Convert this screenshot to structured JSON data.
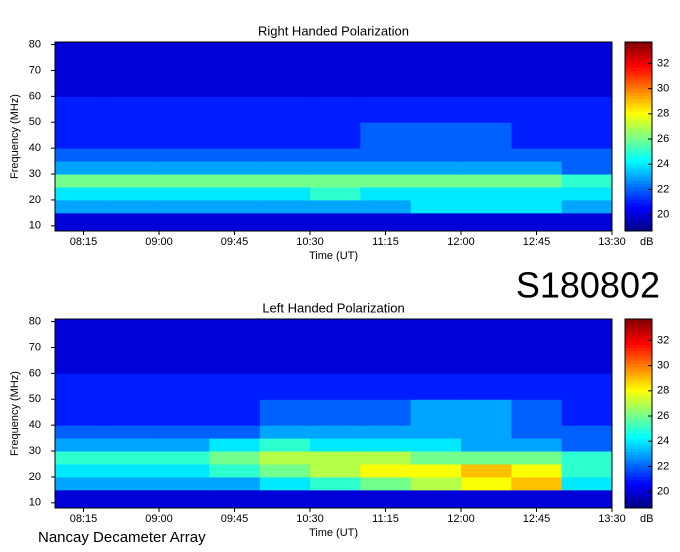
{
  "label": "S180802",
  "footer": "Nancay Decameter Array",
  "chart_data": [
    {
      "type": "heatmap",
      "title": "Right Handed Polarization",
      "xlabel": "Time (UT)",
      "ylabel": "Frequency (MHz)",
      "colorbar_label": "dB",
      "colormap": "jet",
      "xlim": [
        478,
        810
      ],
      "ylim": [
        8,
        81
      ],
      "clim": [
        18.7,
        33.7
      ],
      "xticks": [
        {
          "value": 495,
          "label": "08:15"
        },
        {
          "value": 540,
          "label": "09:00"
        },
        {
          "value": 585,
          "label": "09:45"
        },
        {
          "value": 630,
          "label": "10:30"
        },
        {
          "value": 675,
          "label": "11:15"
        },
        {
          "value": 720,
          "label": "12:00"
        },
        {
          "value": 765,
          "label": "12:45"
        },
        {
          "value": 810,
          "label": "13:30"
        }
      ],
      "yticks": [
        10,
        20,
        30,
        40,
        50,
        60,
        70,
        80
      ],
      "cticks": [
        20,
        22,
        24,
        26,
        28,
        30,
        32
      ],
      "xbins": [
        478,
        510,
        540,
        570,
        600,
        630,
        660,
        690,
        720,
        750,
        780,
        810
      ],
      "ybins": [
        8,
        15,
        20,
        25,
        30,
        35,
        40,
        50,
        60,
        70,
        81
      ],
      "values": [
        [
          20,
          20,
          20,
          20,
          20,
          20,
          20,
          20,
          20,
          20,
          20
        ],
        [
          23,
          23,
          23,
          23,
          23,
          23,
          23,
          24,
          24,
          24,
          23
        ],
        [
          24,
          24,
          24,
          24,
          24,
          25,
          24,
          24,
          24,
          24,
          24
        ],
        [
          26,
          26,
          26,
          26,
          26,
          26,
          26,
          26,
          26,
          26,
          25
        ],
        [
          23,
          23,
          23,
          23,
          23,
          23,
          23,
          23,
          23,
          23,
          22
        ],
        [
          22,
          22,
          22,
          22,
          22,
          22,
          22,
          22,
          22,
          22,
          22
        ],
        [
          21,
          21,
          21,
          21,
          21,
          21,
          22,
          22,
          22,
          21,
          21
        ],
        [
          21,
          21,
          21,
          21,
          21,
          21,
          21,
          21,
          21,
          21,
          21
        ],
        [
          20,
          20,
          20,
          20,
          20,
          20,
          20,
          20,
          20,
          20,
          20
        ],
        [
          20,
          20,
          20,
          20,
          20,
          20,
          20,
          20,
          20,
          20,
          20
        ]
      ]
    },
    {
      "type": "heatmap",
      "title": "Left Handed Polarization",
      "xlabel": "Time (UT)",
      "ylabel": "Frequency (MHz)",
      "colorbar_label": "dB",
      "colormap": "jet",
      "xlim": [
        478,
        810
      ],
      "ylim": [
        8,
        81
      ],
      "clim": [
        18.7,
        33.7
      ],
      "xticks": [
        {
          "value": 495,
          "label": "08:15"
        },
        {
          "value": 540,
          "label": "09:00"
        },
        {
          "value": 585,
          "label": "09:45"
        },
        {
          "value": 630,
          "label": "10:30"
        },
        {
          "value": 675,
          "label": "11:15"
        },
        {
          "value": 720,
          "label": "12:00"
        },
        {
          "value": 765,
          "label": "12:45"
        },
        {
          "value": 810,
          "label": "13:30"
        }
      ],
      "yticks": [
        10,
        20,
        30,
        40,
        50,
        60,
        70,
        80
      ],
      "cticks": [
        20,
        22,
        24,
        26,
        28,
        30,
        32
      ],
      "xbins": [
        478,
        510,
        540,
        570,
        600,
        630,
        660,
        690,
        720,
        750,
        780,
        810
      ],
      "ybins": [
        8,
        15,
        20,
        25,
        30,
        35,
        40,
        50,
        60,
        70,
        81
      ],
      "values": [
        [
          20,
          20,
          20,
          20,
          20,
          20,
          20,
          20,
          20,
          20,
          20
        ],
        [
          23,
          23,
          23,
          23,
          24,
          25,
          26,
          27,
          28,
          29,
          24
        ],
        [
          24,
          24,
          24,
          25,
          26,
          27,
          28,
          28,
          29,
          28,
          25
        ],
        [
          25,
          25,
          25,
          26,
          27,
          27,
          27,
          26,
          26,
          26,
          25
        ],
        [
          23,
          23,
          23,
          24,
          25,
          24,
          24,
          24,
          23,
          23,
          22
        ],
        [
          22,
          22,
          22,
          22,
          23,
          23,
          23,
          23,
          23,
          22,
          22
        ],
        [
          21,
          21,
          21,
          21,
          22,
          22,
          22,
          23,
          23,
          22,
          21
        ],
        [
          21,
          21,
          21,
          21,
          21,
          21,
          21,
          21,
          21,
          21,
          21
        ],
        [
          20,
          20,
          20,
          20,
          20,
          20,
          20,
          20,
          20,
          20,
          20
        ],
        [
          20,
          20,
          20,
          20,
          20,
          20,
          20,
          20,
          20,
          20,
          20
        ]
      ]
    }
  ]
}
